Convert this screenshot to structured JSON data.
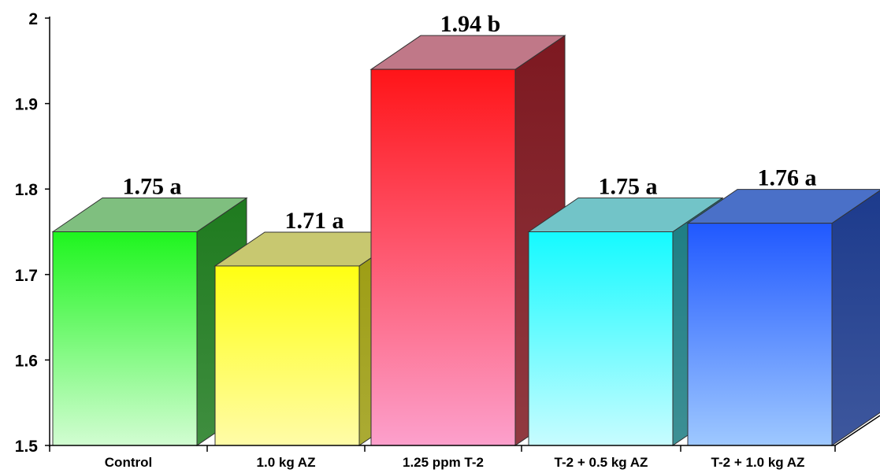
{
  "chart_data": {
    "type": "bar",
    "title": "",
    "xlabel": "",
    "ylabel": "",
    "ylim": [
      1.5,
      2.0
    ],
    "yticks": [
      1.5,
      1.6,
      1.7,
      1.8,
      1.9,
      2.0
    ],
    "ytick_labels": [
      "1.5",
      "1.6",
      "1.7",
      "1.8",
      "1.9",
      "2"
    ],
    "categories": [
      "Control",
      "1.0 kg AZ",
      "1.25 ppm  T-2",
      "T-2 + 0.5 kg AZ",
      "T-2 + 1.0 kg AZ"
    ],
    "values": [
      1.75,
      1.71,
      1.94,
      1.75,
      1.76
    ],
    "data_labels": [
      "1.75 a",
      "1.71 a",
      "1.94 b",
      "1.75 a",
      "1.76 a"
    ],
    "bar_style": "3d",
    "grid": false,
    "legend": "none",
    "colors": [
      {
        "front_top": "#1ef51e",
        "front_bottom": "#d2fdd2",
        "side": "#1e7a1e",
        "top": "#7fbf7f"
      },
      {
        "front_top": "#ffff12",
        "front_bottom": "#fffca8",
        "side": "#9c9c10",
        "top": "#c8c870"
      },
      {
        "front_top": "#ff1418",
        "front_bottom": "#fca0cc",
        "side": "#7d1820",
        "top": "#c07888"
      },
      {
        "front_top": "#14faff",
        "front_bottom": "#c8fcff",
        "side": "#1b7c82",
        "top": "#72c4c8"
      },
      {
        "front_top": "#2058ff",
        "front_bottom": "#9ec8ff",
        "side": "#1c3a8c",
        "top": "#4a70c8"
      }
    ]
  }
}
